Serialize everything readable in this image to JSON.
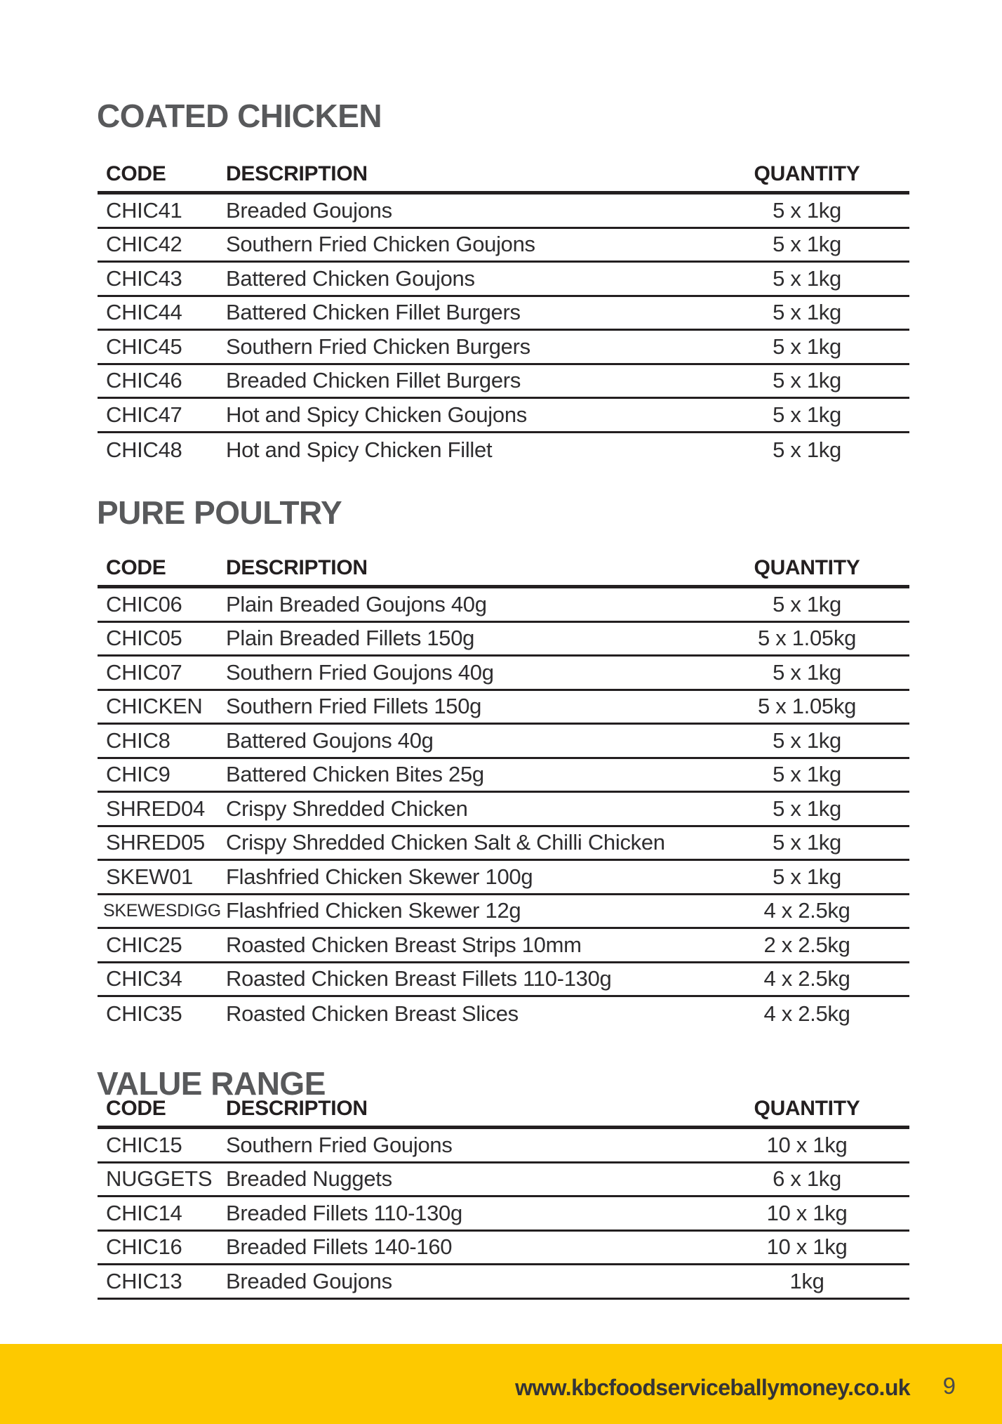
{
  "page": {
    "website": "www.kbcfoodserviceballymoney.co.uk",
    "number": "9"
  },
  "colors": {
    "accent_yellow": "#FDC900",
    "heading_gray": "#58595B",
    "text_dark": "#2E2D2F",
    "line_black": "#231F20"
  },
  "columns": {
    "code": "CODE",
    "description": "DESCRIPTION",
    "quantity": "QUANTITY"
  },
  "sections": [
    {
      "title": "COATED CHICKEN",
      "rows": [
        {
          "code": "CHIC41",
          "description": "Breaded Goujons",
          "quantity": "5 x 1kg"
        },
        {
          "code": "CHIC42",
          "description": "Southern Fried Chicken Goujons",
          "quantity": "5 x 1kg"
        },
        {
          "code": "CHIC43",
          "description": "Battered Chicken Goujons",
          "quantity": "5 x 1kg"
        },
        {
          "code": "CHIC44",
          "description": "Battered Chicken Fillet Burgers",
          "quantity": "5 x 1kg"
        },
        {
          "code": "CHIC45",
          "description": "Southern Fried Chicken Burgers",
          "quantity": "5 x 1kg"
        },
        {
          "code": "CHIC46",
          "description": "Breaded Chicken Fillet Burgers",
          "quantity": "5 x 1kg"
        },
        {
          "code": "CHIC47",
          "description": "Hot and Spicy Chicken Goujons",
          "quantity": "5 x 1kg"
        },
        {
          "code": "CHIC48",
          "description": "Hot and Spicy Chicken Fillet",
          "quantity": "5 x 1kg"
        }
      ]
    },
    {
      "title": "PURE POULTRY",
      "rows": [
        {
          "code": "CHIC06",
          "description": "Plain Breaded Goujons 40g",
          "quantity": "5 x 1kg"
        },
        {
          "code": "CHIC05",
          "description": "Plain Breaded Fillets 150g",
          "quantity": "5 x 1.05kg"
        },
        {
          "code": "CHIC07",
          "description": "Southern Fried Goujons 40g",
          "quantity": "5 x 1kg"
        },
        {
          "code": "CHICKEN",
          "description": "Southern Fried Fillets 150g",
          "quantity": "5 x 1.05kg"
        },
        {
          "code": "CHIC8",
          "description": "Battered Goujons 40g",
          "quantity": "5 x 1kg"
        },
        {
          "code": "CHIC9",
          "description": "Battered Chicken Bites 25g",
          "quantity": "5 x 1kg"
        },
        {
          "code": "SHRED04",
          "description": "Crispy Shredded Chicken",
          "quantity": "5 x 1kg"
        },
        {
          "code": "SHRED05",
          "description": "Crispy Shredded Chicken Salt & Chilli Chicken",
          "quantity": "5 x 1kg"
        },
        {
          "code": "SKEW01",
          "description": "Flashfried Chicken Skewer 100g",
          "quantity": "5 x 1kg"
        },
        {
          "code": "SKEWESDIGG",
          "code_small": true,
          "description": "Flashfried Chicken Skewer 12g",
          "quantity": "4 x 2.5kg"
        },
        {
          "code": "CHIC25",
          "description": "Roasted Chicken Breast Strips 10mm",
          "quantity": "2 x 2.5kg"
        },
        {
          "code": "CHIC34",
          "description": "Roasted Chicken Breast Fillets 110-130g",
          "quantity": "4 x 2.5kg"
        },
        {
          "code": "CHIC35",
          "description": "Roasted Chicken Breast Slices",
          "quantity": "4 x 2.5kg"
        }
      ]
    },
    {
      "title": "VALUE RANGE",
      "rows": [
        {
          "code": "CHIC15",
          "description": "Southern Fried Goujons",
          "quantity": "10 x 1kg"
        },
        {
          "code": "NUGGETS",
          "description": "Breaded Nuggets",
          "quantity": "6 x 1kg"
        },
        {
          "code": "CHIC14",
          "description": "Breaded Fillets 110-130g",
          "quantity": "10 x 1kg"
        },
        {
          "code": "CHIC16",
          "description": "Breaded Fillets 140-160",
          "quantity": "10 x 1kg"
        },
        {
          "code": "CHIC13",
          "description": "Breaded Goujons",
          "quantity": "1kg"
        }
      ]
    }
  ]
}
